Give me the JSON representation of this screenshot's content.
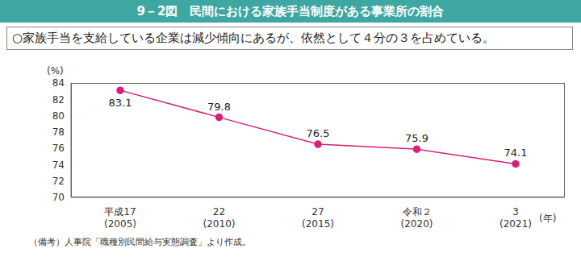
{
  "chart_data": {
    "type": "line",
    "title": "9－2図　民間における家族手当制度がある事業所の割合",
    "subtitle": "○家族手当を支給している企業は減少傾向にあるが、依然として４分の３を占めている。",
    "ylabel": "(%)",
    "xlabel": "(年)",
    "note": "（備考）人事院「職種別民間給与実態調査」より作成。",
    "categories": [
      "平成17\n(2005)",
      "22\n(2010)",
      "27\n(2015)",
      "令和２\n(2020)",
      "3\n(2021)"
    ],
    "values": [
      83.1,
      79.8,
      76.5,
      75.9,
      74.1
    ],
    "color": "#d6217a",
    "marker": "circle",
    "ylim": [
      70,
      84
    ],
    "yticks": [
      70,
      72,
      74,
      76,
      78,
      80,
      82,
      84
    ],
    "data_labels": true,
    "grid": false
  }
}
